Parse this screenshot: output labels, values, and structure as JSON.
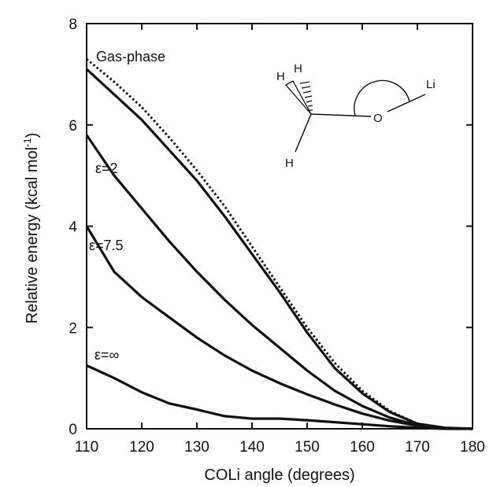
{
  "chart_data": {
    "type": "line",
    "xlabel": "COLi angle (degrees)",
    "ylabel": "Relative energy (kcal mol",
    "ylabel_superscript": "-1",
    "ylabel_suffix": ")",
    "xlim": [
      110,
      180
    ],
    "ylim": [
      0,
      8
    ],
    "x_ticks": [
      "110",
      "120",
      "130",
      "140",
      "150",
      "160",
      "170",
      "180"
    ],
    "y_ticks": [
      "0",
      "2",
      "4",
      "6",
      "8"
    ],
    "grid": false,
    "series": [
      {
        "style": "dotted",
        "x": [
          110,
          115,
          120,
          125,
          130,
          135,
          140,
          145,
          150,
          155,
          160,
          165,
          170,
          175,
          180
        ],
        "y": [
          7.3,
          6.85,
          6.35,
          5.75,
          5.1,
          4.4,
          3.6,
          2.8,
          2.0,
          1.3,
          0.75,
          0.35,
          0.1,
          0.02,
          0.0
        ]
      },
      {
        "name": "Gas-phase",
        "style": "solid",
        "x": [
          110,
          115,
          120,
          125,
          130,
          135,
          140,
          145,
          150,
          155,
          160,
          165,
          170,
          175,
          180
        ],
        "y": [
          7.1,
          6.6,
          6.1,
          5.5,
          4.9,
          4.2,
          3.45,
          2.7,
          1.9,
          1.2,
          0.7,
          0.33,
          0.1,
          0.02,
          0.0
        ]
      },
      {
        "name": "ε=2",
        "style": "solid",
        "x": [
          110,
          115,
          120,
          125,
          130,
          135,
          140,
          145,
          150,
          155,
          160,
          165,
          170,
          175,
          180
        ],
        "y": [
          5.8,
          5.0,
          4.35,
          3.7,
          3.1,
          2.55,
          2.05,
          1.6,
          1.15,
          0.75,
          0.45,
          0.22,
          0.07,
          0.01,
          0.0
        ]
      },
      {
        "name": "ε=7.5",
        "style": "solid",
        "x": [
          110,
          115,
          120,
          125,
          130,
          135,
          140,
          145,
          150,
          155,
          160,
          165,
          170,
          175,
          180
        ],
        "y": [
          4.0,
          3.1,
          2.6,
          2.2,
          1.8,
          1.45,
          1.15,
          0.9,
          0.68,
          0.48,
          0.3,
          0.16,
          0.06,
          0.01,
          0.0
        ]
      },
      {
        "name": "ε=∞",
        "style": "solid",
        "x": [
          110,
          115,
          120,
          125,
          130,
          135,
          140,
          145,
          150,
          155,
          160,
          165,
          170,
          175,
          180
        ],
        "y": [
          1.25,
          1.0,
          0.72,
          0.5,
          0.38,
          0.25,
          0.2,
          0.2,
          0.17,
          0.13,
          0.09,
          0.05,
          0.02,
          0.0,
          0.0
        ]
      }
    ],
    "annotations": [
      "Gas-phase",
      "ε=2",
      "ε=7.5",
      "ε=∞"
    ],
    "molecule_labels": [
      "H",
      "H",
      "H",
      "O",
      "Li"
    ],
    "colors": {
      "line": "#111111",
      "background": "#ffffff"
    }
  }
}
